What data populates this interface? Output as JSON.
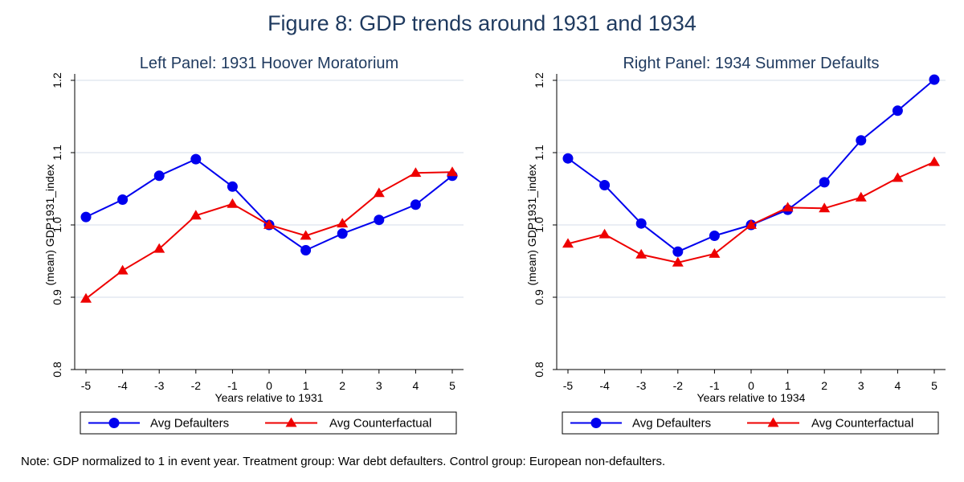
{
  "figure": {
    "title": "Figure 8: GDP trends around 1931 and 1934",
    "note": "Note: GDP normalized to 1 in event year. Treatment group: War debt defaulters. Control group: European non-defaulters."
  },
  "colors": {
    "defaulters": "#0000ee",
    "counterfactual": "#ee0000",
    "grid": "#dde3ee",
    "title": "#1f3a5f"
  },
  "chart_data": [
    {
      "type": "line",
      "title": "Left Panel: 1931 Hoover Moratorium",
      "xlabel": "Years relative to 1931",
      "ylabel": "(mean) GDP1931_index",
      "x": [
        -5,
        -4,
        -3,
        -2,
        -1,
        0,
        1,
        2,
        3,
        4,
        5
      ],
      "xticks": [
        "-5",
        "-4",
        "-3",
        "-2",
        "-1",
        "0",
        "1",
        "2",
        "3",
        "4",
        "5"
      ],
      "yticks": [
        "0.8",
        "0.9",
        "1.0",
        "1.1",
        "1.2"
      ],
      "xlim": [
        -5,
        5
      ],
      "ylim": [
        0.8,
        1.2
      ],
      "grid": true,
      "legend": "bottom",
      "series": [
        {
          "name": "Avg Defaulters",
          "marker": "circle",
          "color": "#0000ee",
          "values": [
            1.011,
            1.035,
            1.068,
            1.091,
            1.053,
            1.0,
            0.965,
            0.988,
            1.007,
            1.028,
            1.068
          ]
        },
        {
          "name": "Avg Counterfactual",
          "marker": "triangle",
          "color": "#ee0000",
          "values": [
            0.898,
            0.937,
            0.967,
            1.013,
            1.029,
            1.0,
            0.985,
            1.002,
            1.044,
            1.072,
            1.073
          ]
        }
      ]
    },
    {
      "type": "line",
      "title": "Right Panel: 1934 Summer Defaults",
      "xlabel": "Years relative to 1934",
      "ylabel": "(mean) GDP1931_index",
      "x": [
        -5,
        -4,
        -3,
        -2,
        -1,
        0,
        1,
        2,
        3,
        4,
        5
      ],
      "xticks": [
        "-5",
        "-4",
        "-3",
        "-2",
        "-1",
        "0",
        "1",
        "2",
        "3",
        "4",
        "5"
      ],
      "yticks": [
        "0.8",
        "0.9",
        "1.0",
        "1.1",
        "1.2"
      ],
      "xlim": [
        -5,
        5
      ],
      "ylim": [
        0.8,
        1.2
      ],
      "grid": true,
      "legend": "bottom",
      "series": [
        {
          "name": "Avg Defaulters",
          "marker": "circle",
          "color": "#0000ee",
          "values": [
            1.092,
            1.055,
            1.002,
            0.963,
            0.985,
            1.0,
            1.021,
            1.059,
            1.117,
            1.158,
            1.201
          ]
        },
        {
          "name": "Avg Counterfactual",
          "marker": "triangle",
          "color": "#ee0000",
          "values": [
            0.974,
            0.987,
            0.959,
            0.948,
            0.96,
            1.0,
            1.024,
            1.023,
            1.038,
            1.065,
            1.087
          ]
        }
      ]
    }
  ]
}
